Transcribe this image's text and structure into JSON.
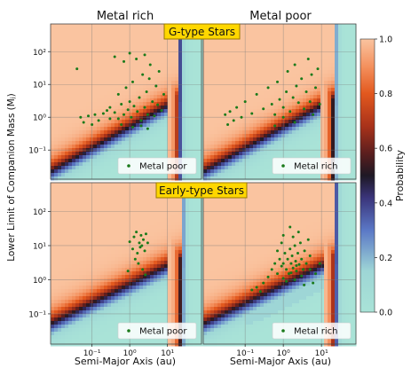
{
  "figure": {
    "column_titles": [
      "Metal rich",
      "Metal poor"
    ],
    "row_titles": [
      "G-type Stars",
      "Early-type Stars"
    ],
    "ylabel": "Lower Limit of Companion Mass (Mⱼ)",
    "xlabel": "Semi-Major Axis (au)",
    "colorbar_label": "Probability",
    "colors": {
      "title_box_fill": "#ffd700",
      "title_box_edge": "#9a7a00",
      "points": "#1a7a1a",
      "cmap_low": "#a9e3d7",
      "cmap_mid": "#2a1a2a",
      "cmap_high": "#fac4a0"
    }
  },
  "chart_data": [
    {
      "type": "heatmap",
      "panel": "G-type Stars / Metal rich",
      "xscale": "log",
      "yscale": "log",
      "xlim": [
        0.008,
        80
      ],
      "ylim": [
        0.013,
        700
      ],
      "xticks": [
        "10⁻¹",
        "10⁰",
        "10¹"
      ],
      "yticks": [
        "10⁻¹",
        "10⁰",
        "10¹",
        "10²"
      ],
      "legend": {
        "label": "Metal poor",
        "position": "lower-right"
      },
      "scatter_points": [
        [
          0.04,
          30
        ],
        [
          0.05,
          1
        ],
        [
          0.06,
          0.7
        ],
        [
          0.08,
          1.1
        ],
        [
          0.1,
          0.6
        ],
        [
          0.12,
          1.2
        ],
        [
          0.15,
          0.8
        ],
        [
          0.2,
          1.3
        ],
        [
          0.25,
          1.6
        ],
        [
          0.3,
          0.9
        ],
        [
          0.3,
          2
        ],
        [
          0.4,
          1.4
        ],
        [
          0.5,
          5
        ],
        [
          0.5,
          0.9
        ],
        [
          0.6,
          2.5
        ],
        [
          0.7,
          1.2
        ],
        [
          0.8,
          8
        ],
        [
          0.9,
          1.7
        ],
        [
          1,
          3
        ],
        [
          1.1,
          1
        ],
        [
          1.2,
          12
        ],
        [
          1.3,
          2.2
        ],
        [
          1.5,
          60
        ],
        [
          1.6,
          1.5
        ],
        [
          1.8,
          4
        ],
        [
          2,
          0.8
        ],
        [
          2.2,
          20
        ],
        [
          2.5,
          2
        ],
        [
          2.8,
          6
        ],
        [
          3,
          1.2
        ],
        [
          3.3,
          15
        ],
        [
          3.5,
          40
        ],
        [
          4,
          3
        ],
        [
          4.5,
          1.1
        ],
        [
          5,
          9
        ],
        [
          5.5,
          2.4
        ],
        [
          6,
          25
        ],
        [
          7,
          1.6
        ],
        [
          8,
          5
        ],
        [
          1,
          90
        ],
        [
          0.7,
          50
        ],
        [
          2.5,
          80
        ],
        [
          0.4,
          70
        ],
        [
          1.2,
          0.5
        ],
        [
          2,
          0.55
        ],
        [
          0.6,
          0.6
        ],
        [
          3,
          0.45
        ]
      ]
    },
    {
      "type": "heatmap",
      "panel": "G-type Stars / Metal poor",
      "xscale": "log",
      "yscale": "log",
      "xlim": [
        0.008,
        80
      ],
      "ylim": [
        0.013,
        700
      ],
      "xticks": [
        "10⁻¹",
        "10⁰",
        "10¹"
      ],
      "yticks": [
        "10⁻¹",
        "10⁰",
        "10¹",
        "10²"
      ],
      "legend": {
        "label": "Metal rich",
        "position": "lower-right"
      },
      "scatter_points": [
        [
          0.03,
          1.2
        ],
        [
          0.035,
          0.6
        ],
        [
          0.04,
          1.5
        ],
        [
          0.05,
          0.8
        ],
        [
          0.06,
          2
        ],
        [
          0.08,
          1
        ],
        [
          0.1,
          3
        ],
        [
          0.15,
          1.3
        ],
        [
          0.2,
          5
        ],
        [
          0.3,
          1.8
        ],
        [
          0.4,
          8
        ],
        [
          0.5,
          2.5
        ],
        [
          0.6,
          1.2
        ],
        [
          0.7,
          12
        ],
        [
          0.8,
          3.5
        ],
        [
          1,
          2
        ],
        [
          1.2,
          6
        ],
        [
          1.3,
          25
        ],
        [
          1.5,
          1.5
        ],
        [
          1.8,
          4
        ],
        [
          2,
          40
        ],
        [
          2.2,
          9
        ],
        [
          2.5,
          2.8
        ],
        [
          3,
          15
        ],
        [
          3.5,
          1.8
        ],
        [
          4,
          6
        ],
        [
          4.5,
          60
        ],
        [
          5,
          3
        ],
        [
          5.5,
          20
        ],
        [
          6,
          1.2
        ],
        [
          7,
          8
        ],
        [
          8,
          30
        ],
        [
          9,
          2.5
        ],
        [
          1,
          1
        ],
        [
          0.6,
          0.55
        ],
        [
          2,
          0.7
        ]
      ]
    },
    {
      "type": "heatmap",
      "panel": "Early-type Stars / Metal rich",
      "xscale": "log",
      "yscale": "log",
      "xlim": [
        0.008,
        80
      ],
      "ylim": [
        0.013,
        700
      ],
      "xticks": [
        "10⁻¹",
        "10⁰",
        "10¹"
      ],
      "yticks": [
        "10⁻¹",
        "10⁰",
        "10¹",
        "10²"
      ],
      "legend": {
        "label": "Metal poor",
        "position": "lower-right"
      },
      "scatter_points": [
        [
          1.0,
          13
        ],
        [
          1.2,
          8
        ],
        [
          1.3,
          18
        ],
        [
          1.5,
          25
        ],
        [
          1.6,
          6
        ],
        [
          1.8,
          12
        ],
        [
          2,
          20
        ],
        [
          2.1,
          10
        ],
        [
          2.3,
          15
        ],
        [
          2.5,
          7
        ],
        [
          2.7,
          22
        ],
        [
          3,
          12
        ],
        [
          1.4,
          4
        ],
        [
          1.7,
          3
        ],
        [
          2.2,
          2
        ],
        [
          0.9,
          1.8
        ],
        [
          2.6,
          1.4
        ],
        [
          1.9,
          9
        ]
      ]
    },
    {
      "type": "heatmap",
      "panel": "Early-type Stars / Metal poor",
      "xscale": "log",
      "yscale": "log",
      "xlim": [
        0.008,
        80
      ],
      "ylim": [
        0.013,
        700
      ],
      "xticks": [
        "10⁻¹",
        "10⁰",
        "10¹"
      ],
      "yticks": [
        "10⁻¹",
        "10⁰",
        "10¹",
        "10²"
      ],
      "legend": {
        "label": "Metal rich",
        "position": "lower-right"
      },
      "scatter_points": [
        [
          0.5,
          2
        ],
        [
          0.6,
          3
        ],
        [
          0.7,
          1.5
        ],
        [
          0.8,
          4
        ],
        [
          0.9,
          2.5
        ],
        [
          1,
          3
        ],
        [
          1.1,
          6
        ],
        [
          1.2,
          2
        ],
        [
          1.3,
          4
        ],
        [
          1.4,
          1.5
        ],
        [
          1.5,
          8
        ],
        [
          1.6,
          3
        ],
        [
          1.7,
          5
        ],
        [
          1.8,
          2.2
        ],
        [
          2,
          10
        ],
        [
          2.1,
          3.5
        ],
        [
          2.2,
          1.8
        ],
        [
          2.4,
          6
        ],
        [
          2.6,
          2.8
        ],
        [
          2.8,
          12
        ],
        [
          3,
          4
        ],
        [
          3.3,
          2
        ],
        [
          3.6,
          7
        ],
        [
          4,
          3
        ],
        [
          4.5,
          15
        ],
        [
          5,
          5
        ],
        [
          1,
          20
        ],
        [
          1.5,
          35
        ],
        [
          2.5,
          25
        ],
        [
          0.4,
          1.2
        ],
        [
          0.3,
          0.8
        ],
        [
          0.2,
          0.6
        ],
        [
          0.25,
          0.45
        ],
        [
          0.15,
          0.5
        ],
        [
          1.2,
          0.9
        ],
        [
          2,
          1
        ],
        [
          3,
          1.3
        ],
        [
          5,
          2
        ],
        [
          7,
          1.5
        ],
        [
          9,
          3
        ],
        [
          6,
          0.8
        ],
        [
          0.9,
          12
        ],
        [
          1.8,
          18
        ],
        [
          3.5,
          0.7
        ],
        [
          1,
          1.1
        ],
        [
          1.6,
          1.6
        ],
        [
          2.2,
          2.6
        ],
        [
          0.7,
          7
        ]
      ]
    }
  ],
  "colorbar": {
    "type": "colorbar",
    "range": [
      0.0,
      1.0
    ],
    "ticks": [
      "0.0",
      "0.2",
      "0.4",
      "0.6",
      "0.8",
      "1.0"
    ]
  }
}
